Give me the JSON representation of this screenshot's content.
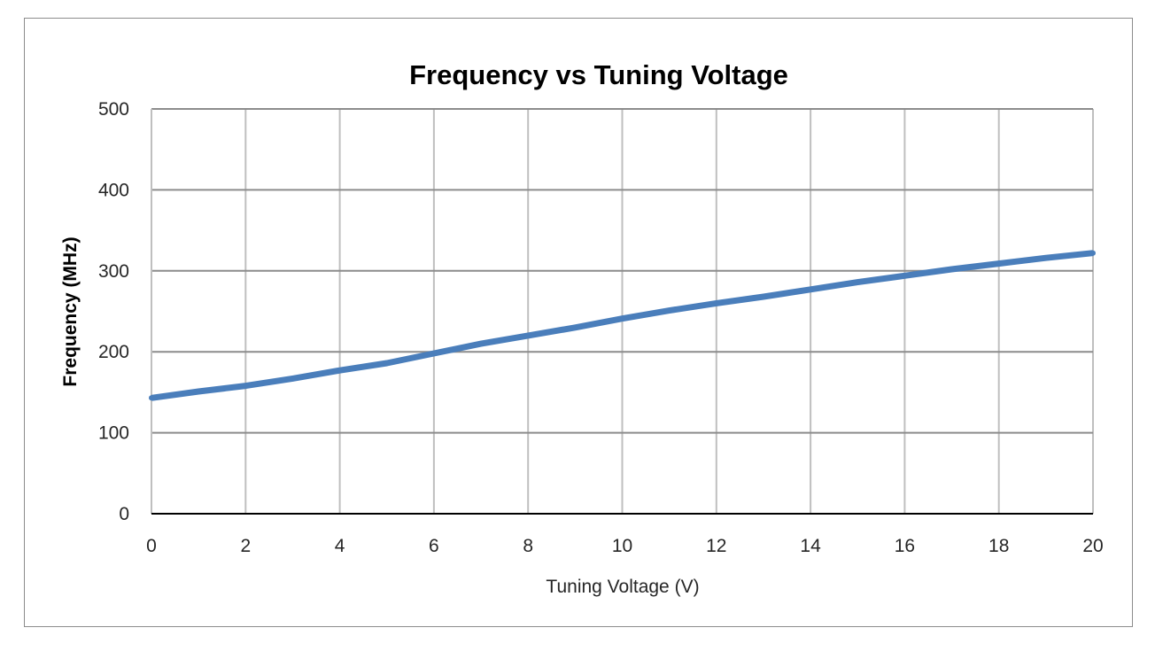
{
  "chart_data": {
    "type": "line",
    "title": "Frequency vs Tuning Voltage",
    "xlabel": "Tuning Voltage (V)",
    "ylabel": "Frequency (MHz)",
    "xlim": [
      0,
      20
    ],
    "ylim": [
      0,
      500
    ],
    "x_ticks": [
      0,
      2,
      4,
      6,
      8,
      10,
      12,
      14,
      16,
      18,
      20
    ],
    "y_ticks": [
      0,
      100,
      200,
      300,
      400,
      500
    ],
    "grid": true,
    "legend": "none",
    "series": [
      {
        "color": "#4a7ebb",
        "x": [
          0,
          1,
          2,
          3,
          4,
          5,
          6,
          7,
          8,
          9,
          10,
          11,
          12,
          13,
          14,
          15,
          16,
          17,
          18,
          19,
          20
        ],
        "values": [
          143,
          151,
          158,
          167,
          177,
          186,
          198,
          210,
          220,
          230,
          241,
          251,
          260,
          268,
          277,
          286,
          294,
          302,
          309,
          316,
          322
        ]
      }
    ]
  }
}
